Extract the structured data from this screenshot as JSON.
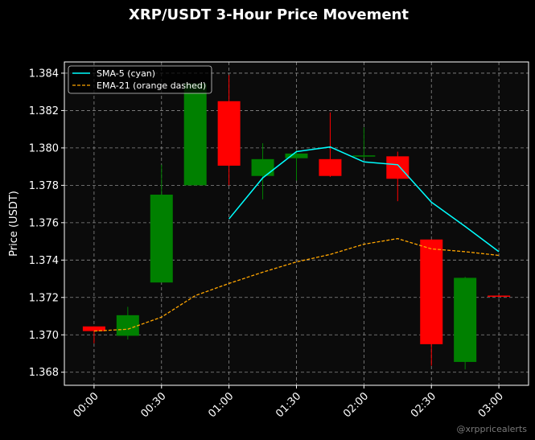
{
  "chart_data": {
    "type": "candlestick",
    "title": "XRP/USDT 3-Hour Price Movement",
    "ylabel": "Price (USDT)",
    "xlabel": "",
    "ylim": [
      1.3673,
      1.3846
    ],
    "xlim": [
      -0.22,
      3.22
    ],
    "yticks": [
      1.368,
      1.37,
      1.372,
      1.374,
      1.376,
      1.378,
      1.38,
      1.382,
      1.384
    ],
    "ytick_labels": [
      "1.368",
      "1.370",
      "1.372",
      "1.374",
      "1.376",
      "1.378",
      "1.380",
      "1.382",
      "1.384"
    ],
    "xticks": [
      0,
      0.5,
      1.0,
      1.5,
      2.0,
      2.5,
      3.0
    ],
    "xtick_labels": [
      "00:00",
      "00:30",
      "01:00",
      "01:30",
      "02:00",
      "02:30",
      "03:00"
    ],
    "grid": true,
    "legend_position": "top-left",
    "candle_width_hours": 0.167,
    "colors": {
      "background": "#000000",
      "plot_background": "#0b0b0b",
      "up": "#008000",
      "down": "#ff0000",
      "sma": "#00ffff",
      "ema": "#ffa500",
      "grid": "#8a8a8a",
      "axes": "#ffffff",
      "watermark": "#7a7a7a"
    },
    "candles": [
      {
        "t": 0.0,
        "open": 1.37045,
        "high": 1.37045,
        "low": 1.36955,
        "close": 1.3702
      },
      {
        "t": 0.25,
        "open": 1.36995,
        "high": 1.3715,
        "low": 1.36975,
        "close": 1.37105
      },
      {
        "t": 0.5,
        "open": 1.3728,
        "high": 1.3791,
        "low": 1.3728,
        "close": 1.3775
      },
      {
        "t": 0.75,
        "open": 1.378,
        "high": 1.38345,
        "low": 1.378,
        "close": 1.38345
      },
      {
        "t": 1.0,
        "open": 1.3825,
        "high": 1.3839,
        "low": 1.378,
        "close": 1.37905
      },
      {
        "t": 1.25,
        "open": 1.3785,
        "high": 1.38025,
        "low": 1.37725,
        "close": 1.3794
      },
      {
        "t": 1.5,
        "open": 1.37945,
        "high": 1.3799,
        "low": 1.37825,
        "close": 1.3797
      },
      {
        "t": 1.75,
        "open": 1.3794,
        "high": 1.3819,
        "low": 1.37845,
        "close": 1.3785
      },
      {
        "t": 2.0,
        "open": 1.37955,
        "high": 1.3811,
        "low": 1.37945,
        "close": 1.3796
      },
      {
        "t": 2.25,
        "open": 1.37955,
        "high": 1.3798,
        "low": 1.37715,
        "close": 1.37835
      },
      {
        "t": 2.5,
        "open": 1.3751,
        "high": 1.3751,
        "low": 1.36835,
        "close": 1.3695
      },
      {
        "t": 2.75,
        "open": 1.36855,
        "high": 1.3731,
        "low": 1.36815,
        "close": 1.37305
      },
      {
        "t": 3.0,
        "open": 1.3721,
        "high": 1.37215,
        "low": 1.37205,
        "close": 1.37205
      }
    ],
    "series": [
      {
        "name": "SMA-5 (cyan)",
        "style": "solid",
        "color": "#00ffff",
        "x": [
          1.0,
          1.25,
          1.5,
          1.75,
          2.0,
          2.25,
          2.5,
          2.75,
          3.0
        ],
        "values": [
          1.3762,
          1.3784,
          1.3798,
          1.38005,
          1.37925,
          1.3791,
          1.3771,
          1.3758,
          1.37445
        ]
      },
      {
        "name": "EMA-21 (orange dashed)",
        "style": "dashed",
        "color": "#ffa500",
        "x": [
          0.0,
          0.25,
          0.5,
          0.75,
          1.0,
          1.25,
          1.5,
          1.75,
          2.0,
          2.25,
          2.5,
          2.75,
          3.0
        ],
        "values": [
          1.3702,
          1.3703,
          1.37095,
          1.3721,
          1.37275,
          1.37335,
          1.3739,
          1.3743,
          1.37485,
          1.37515,
          1.3746,
          1.37445,
          1.37425
        ]
      }
    ]
  },
  "watermark": "@xrppricealerts"
}
